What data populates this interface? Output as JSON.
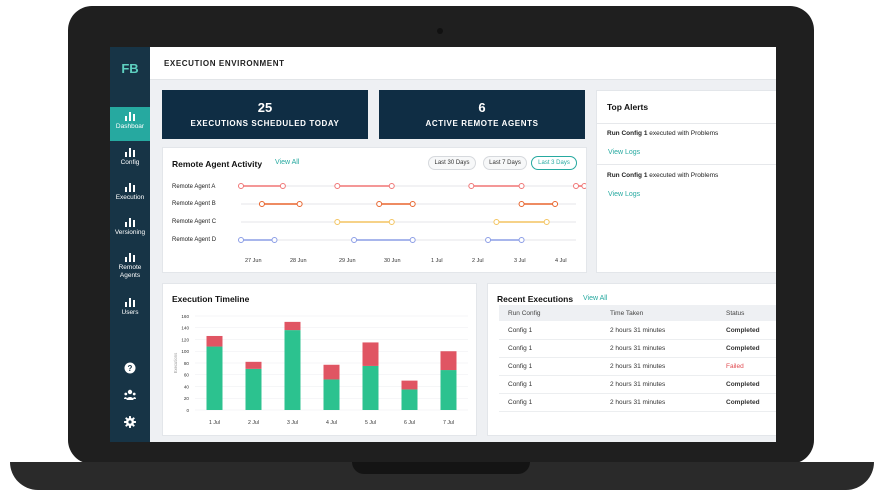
{
  "app": {
    "logo": "FB",
    "page_title": "EXECUTION ENVIRONMENT"
  },
  "sidebar": {
    "items": [
      {
        "label": "Dashboar",
        "icon": "bar-chart-icon",
        "active": true
      },
      {
        "label": "Config",
        "icon": "bar-chart-icon",
        "active": false
      },
      {
        "label": "Execution",
        "icon": "bar-chart-icon",
        "active": false
      },
      {
        "label": "Versioning",
        "icon": "bar-chart-icon",
        "active": false
      },
      {
        "label": "Remote Agents",
        "icon": "bar-chart-icon",
        "active": false
      },
      {
        "label": "Users",
        "icon": "bar-chart-icon",
        "active": false
      }
    ],
    "utility_icons": [
      "help-icon",
      "users-group-icon",
      "settings-gear-icon"
    ]
  },
  "stats": {
    "scheduled": {
      "value": "25",
      "label": "EXECUTIONS SCHEDULED TODAY"
    },
    "agents": {
      "value": "6",
      "label": "ACTIVE REMOTE AGENTS"
    }
  },
  "activity": {
    "title": "Remote Agent Activity",
    "view_all": "View All",
    "filters": [
      "Last 30 Days",
      "Last 7 Days",
      "Last 3 Days"
    ],
    "active_filter": "Last 3 Days",
    "x_labels": [
      "27 Jun",
      "28 Jun",
      "29 Jun",
      "30 Jun",
      "1 Jul",
      "2 Jul",
      "3 Jul",
      "4 Jul"
    ],
    "agents": [
      {
        "name": "Remote Agent A",
        "color": "#f07575",
        "segments": [
          [
            0.0,
            1.0
          ],
          [
            2.3,
            3.6
          ],
          [
            5.5,
            6.7
          ],
          [
            8.0,
            8.2
          ]
        ]
      },
      {
        "name": "Remote Agent B",
        "color": "#e8652e",
        "segments": [
          [
            0.5,
            1.4
          ],
          [
            3.3,
            4.1
          ],
          [
            6.7,
            7.5
          ]
        ]
      },
      {
        "name": "Remote Agent C",
        "color": "#f3c460",
        "segments": [
          [
            2.3,
            3.6
          ],
          [
            6.1,
            7.3
          ]
        ]
      },
      {
        "name": "Remote Agent D",
        "color": "#8b9de6",
        "segments": [
          [
            0.0,
            0.8
          ],
          [
            2.7,
            4.1
          ],
          [
            5.9,
            6.7
          ]
        ]
      }
    ]
  },
  "alerts": {
    "title": "Top Alerts",
    "items": [
      {
        "config": "Run Config 1",
        "message": " executed with Problems",
        "link": "View Logs"
      },
      {
        "config": "Run Config 1",
        "message": " executed with Problems",
        "link": "View Logs"
      }
    ]
  },
  "timeline": {
    "title": "Execution Timeline",
    "chart_data": {
      "type": "bar",
      "stacked": true,
      "ylabel": "Executions",
      "ylim": [
        0,
        160
      ],
      "y_ticks": [
        0,
        20,
        40,
        60,
        80,
        100,
        120,
        140,
        160
      ],
      "categories": [
        "1 Jul",
        "2 Jul",
        "3 Jul",
        "4 Jul",
        "5 Jul",
        "6 Jul",
        "7 Jul"
      ],
      "series": [
        {
          "values": [
            108,
            70,
            136,
            52,
            75,
            35,
            68
          ],
          "color": "#2cc28f"
        },
        {
          "values": [
            18,
            12,
            14,
            25,
            40,
            15,
            32
          ],
          "color": "#e05563"
        }
      ]
    }
  },
  "executions": {
    "title": "Recent Executions",
    "view_all": "View All",
    "columns": [
      "Run Config",
      "Time Taken",
      "Status"
    ],
    "rows": [
      {
        "config": "Config 1",
        "time": "2 hours 31 minutes",
        "status": "Completed"
      },
      {
        "config": "Config 1",
        "time": "2 hours 31 minutes",
        "status": "Completed"
      },
      {
        "config": "Config 1",
        "time": "2 hours 31 minutes",
        "status": "Failed"
      },
      {
        "config": "Config 1",
        "time": "2 hours 31 minutes",
        "status": "Completed"
      },
      {
        "config": "Config 1",
        "time": "2 hours 31 minutes",
        "status": "Completed"
      }
    ]
  }
}
